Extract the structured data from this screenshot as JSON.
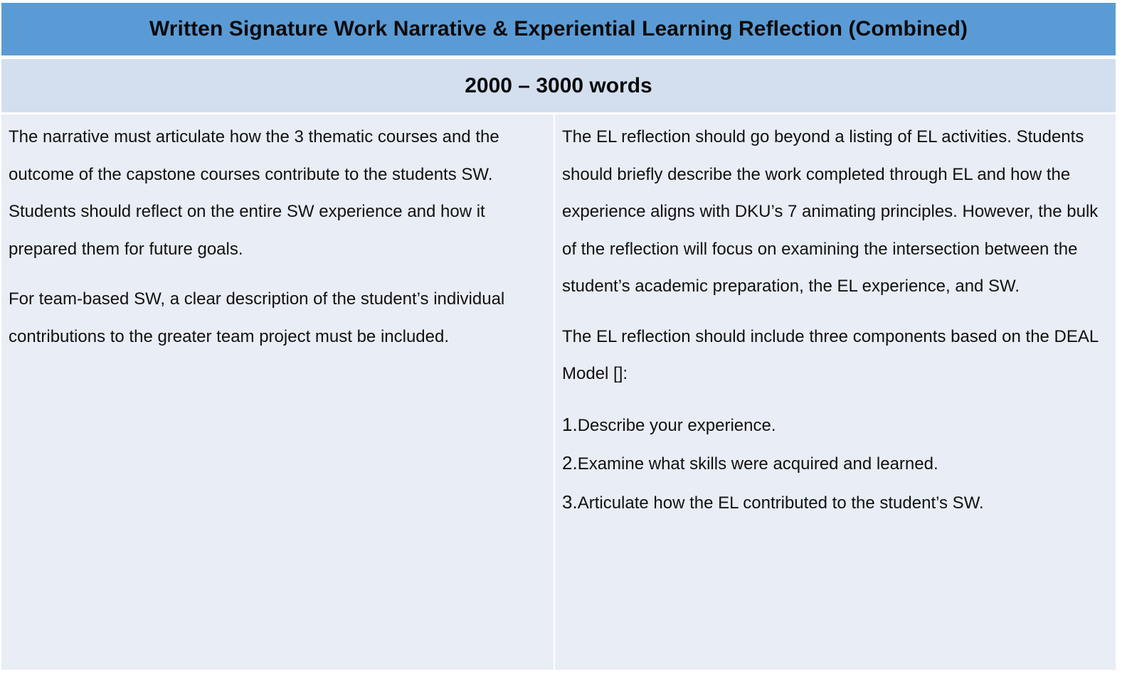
{
  "header": {
    "title": "Written Signature Work Narrative & Experiential Learning Reflection (Combined)",
    "word_count": "2000 – 3000 words"
  },
  "left_column": {
    "paragraphs": [
      "The narrative must articulate how the 3 thematic courses and the outcome of the capstone courses contribute to the students SW. Students should reflect on the entire SW experience and how it prepared them for future goals.",
      "For team-based SW, a clear description of the student’s individual contributions to the greater team project must be included."
    ]
  },
  "right_column": {
    "paragraphs": [
      "The EL reflection should go beyond a listing of EL activities. Students should briefly describe the work completed through EL and how the experience aligns with DKU’s 7 animating principles. However, the bulk of the reflection will focus on examining the intersection between the student’s academic preparation, the EL experience, and SW.",
      "The EL reflection should include three components based on the DEAL Model []:"
    ],
    "steps": [
      {
        "number": "1.",
        "text": "Describe your experience."
      },
      {
        "number": "2.",
        "text": "Examine what skills were acquired and learned."
      },
      {
        "number": "3.",
        "text": "Articulate how the EL contributed to the student’s SW."
      }
    ]
  },
  "colors": {
    "title_bar": "#5b9bd5",
    "subtitle_bar": "#d3dfef",
    "body_cells": "#e9edf5"
  }
}
